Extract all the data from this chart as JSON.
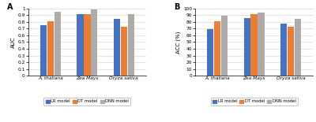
{
  "chart_a": {
    "title": "A",
    "ylabel": "AUC",
    "ylim": [
      0,
      1.0
    ],
    "yticks": [
      0.0,
      0.1,
      0.2,
      0.3,
      0.4,
      0.5,
      0.6,
      0.7,
      0.8,
      0.9,
      1.0
    ],
    "ytick_labels": [
      "0",
      "0.1",
      "0.2",
      "0.3",
      "0.4",
      "0.5",
      "0.6",
      "0.7",
      "0.8",
      "0.9",
      "1"
    ],
    "categories": [
      "A. thaliana",
      "Zea Mays",
      "Oryza sativa"
    ],
    "lr_values": [
      0.75,
      0.92,
      0.85
    ],
    "dt_values": [
      0.81,
      0.92,
      0.73
    ],
    "dnn_values": [
      0.95,
      0.99,
      0.92
    ]
  },
  "chart_b": {
    "title": "B",
    "ylabel": "ACC (%)",
    "ylim": [
      0,
      100
    ],
    "yticks": [
      0,
      10,
      20,
      30,
      40,
      50,
      60,
      70,
      80,
      90,
      100
    ],
    "ytick_labels": [
      "0",
      "10",
      "20",
      "30",
      "40",
      "50",
      "60",
      "70",
      "80",
      "90",
      "100"
    ],
    "categories": [
      "A. thaliana",
      "Zea Mays",
      "Oryza sativa"
    ],
    "lr_values": [
      69,
      86,
      77
    ],
    "dt_values": [
      81,
      92,
      73
    ],
    "dnn_values": [
      89,
      94,
      85
    ]
  },
  "colors": {
    "lr": "#4472C4",
    "dt": "#ED7D31",
    "dnn": "#AEAAAA"
  },
  "legend_labels": [
    "LR model",
    "DT model",
    "DNN model"
  ],
  "bar_width": 0.18,
  "bar_spacing": 0.19
}
